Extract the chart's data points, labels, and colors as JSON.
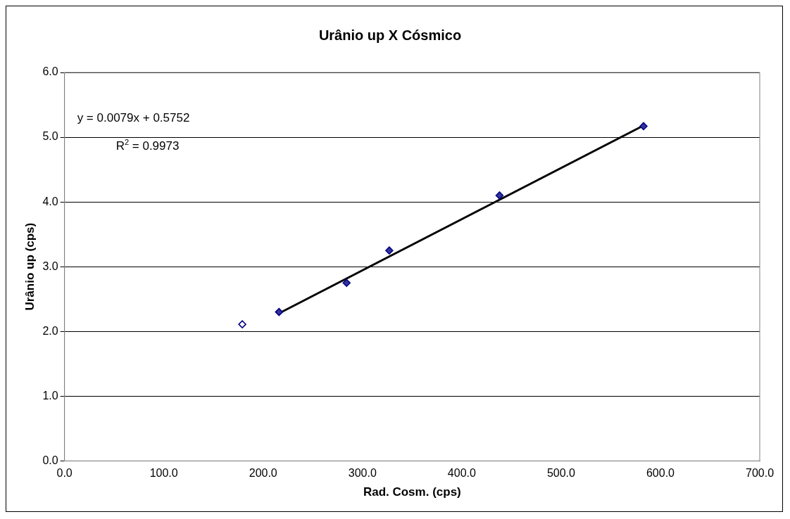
{
  "chart_data": {
    "type": "scatter",
    "title": "Urânio up X Cósmico",
    "xlabel": "Rad. Cosm. (cps)",
    "ylabel": "Urânio up (cps)",
    "annotations": [
      "y = 0.0079x + 0.5752",
      "R$^{2}$ = 0.9973"
    ],
    "series": [
      {
        "type": "scatter",
        "color": "#333399",
        "x": [
          216,
          284,
          327,
          438,
          583
        ],
        "values": [
          2.3,
          2.75,
          3.25,
          4.1,
          5.17
        ]
      },
      {
        "type": "scatter",
        "color": "#ffffff",
        "x": [
          179
        ],
        "values": [
          2.11
        ]
      },
      {
        "type": "line",
        "color": "#000000",
        "marker": "none",
        "x": [
          216,
          583
        ],
        "values": [
          2.28,
          5.18
        ]
      }
    ],
    "xlim": [
      0,
      700
    ],
    "xticks": [
      {
        "value": 0,
        "label": "0.0"
      },
      {
        "value": 100,
        "label": "100.0"
      },
      {
        "value": 200,
        "label": "200.0"
      },
      {
        "value": 300,
        "label": "300.0"
      },
      {
        "value": 400,
        "label": "400.0"
      },
      {
        "value": 500,
        "label": "500.0"
      },
      {
        "value": 600,
        "label": "600.0"
      },
      {
        "value": 700,
        "label": "700.0"
      }
    ],
    "ylim": [
      0,
      6
    ],
    "yticks": [
      {
        "value": 0,
        "label": "0.0"
      },
      {
        "value": 1,
        "label": "1.0"
      },
      {
        "value": 2,
        "label": "2.0"
      },
      {
        "value": 3,
        "label": "3.0"
      },
      {
        "value": 4,
        "label": "4.0"
      },
      {
        "value": 5,
        "label": "5.0"
      },
      {
        "value": 6,
        "label": "6.0"
      }
    ],
    "grid": "y",
    "legend": false,
    "marker": "diamond"
  }
}
